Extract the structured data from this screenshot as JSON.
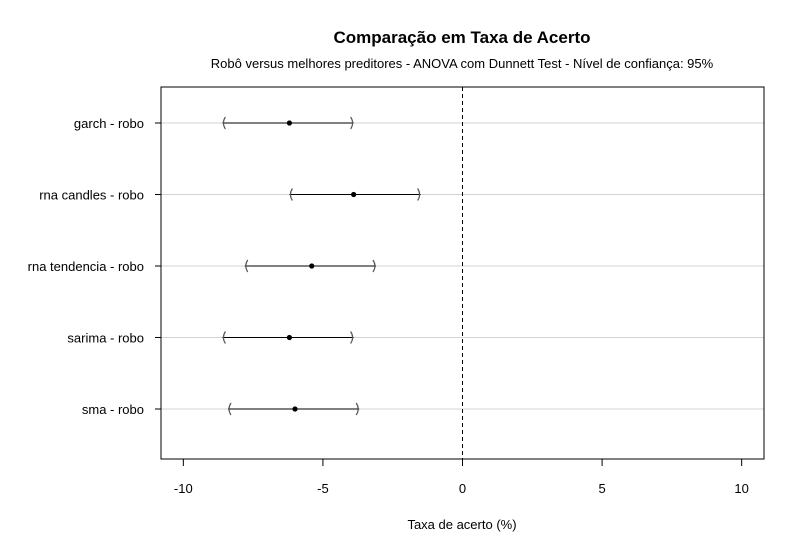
{
  "chart_data": {
    "type": "interval",
    "title": "Comparação em Taxa de Acerto",
    "subtitle": "Robô versus melhores preditores - ANOVA com Dunnett Test - Nível de confiança: 95%",
    "xlabel": "Taxa de acerto (%)",
    "ylabel": "",
    "xlim": [
      -10.8,
      10.8
    ],
    "xticks": [
      -10,
      -5,
      0,
      5,
      10
    ],
    "xtick_labels": [
      "-10",
      "-5",
      "0",
      "5",
      "10"
    ],
    "reference_line": 0,
    "grid": "horizontal",
    "comparisons": [
      {
        "label": "garch - robo",
        "estimate": -6.2,
        "lower": -8.6,
        "upper": -3.9
      },
      {
        "label": "rna candles - robo",
        "estimate": -3.9,
        "lower": -6.2,
        "upper": -1.5
      },
      {
        "label": "rna tendencia - robo",
        "estimate": -5.4,
        "lower": -7.8,
        "upper": -3.1
      },
      {
        "label": "sarima - robo",
        "estimate": -6.2,
        "lower": -8.6,
        "upper": -3.9
      },
      {
        "label": "sma - robo",
        "estimate": -6.0,
        "lower": -8.4,
        "upper": -3.7
      }
    ],
    "colors": {
      "grid": "#d3d3d3",
      "marks": "#000000",
      "bracket": "#555555"
    }
  }
}
